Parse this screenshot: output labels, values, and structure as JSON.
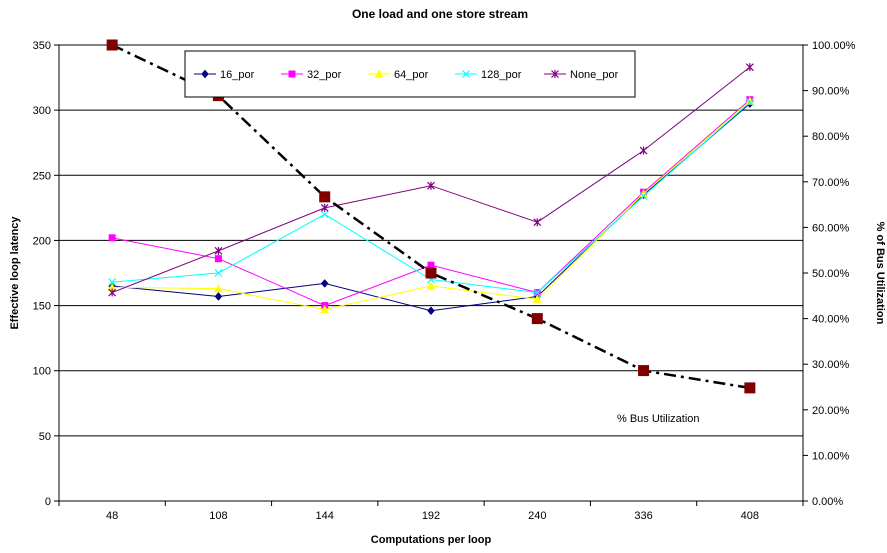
{
  "chart_data": {
    "type": "line",
    "title": "One load and one store stream",
    "xlabel": "Computations per loop",
    "ylabel": "Effective loop latency",
    "y2label": "% of Bus Utilization",
    "categories": [
      "48",
      "108",
      "144",
      "192",
      "240",
      "336",
      "408"
    ],
    "ylim": [
      0,
      350
    ],
    "y_ticks": [
      "0",
      "50",
      "100",
      "150",
      "200",
      "250",
      "300",
      "350"
    ],
    "y2lim": [
      0,
      100
    ],
    "y2_ticks": [
      "0.00%",
      "10.00%",
      "20.00%",
      "30.00%",
      "40.00%",
      "50.00%",
      "60.00%",
      "70.00%",
      "80.00%",
      "90.00%",
      "100.00%"
    ],
    "grid": "horizontal",
    "legend_position": "top-center",
    "series": [
      {
        "name": "16_por",
        "color": "#000080",
        "marker": "diamond",
        "values": [
          165,
          157,
          167,
          146,
          157,
          235,
          305
        ]
      },
      {
        "name": "32_por",
        "color": "#ff00ff",
        "marker": "square",
        "values": [
          202,
          186,
          150,
          181,
          160,
          237,
          308
        ]
      },
      {
        "name": "64_por",
        "color": "#ffff00",
        "marker": "triangle",
        "values": [
          164,
          163,
          147,
          165,
          155,
          236,
          307
        ]
      },
      {
        "name": "128_por",
        "color": "#00ffff",
        "marker": "x",
        "values": [
          168,
          175,
          220,
          170,
          160,
          234,
          306
        ]
      },
      {
        "name": "None_por",
        "color": "#800080",
        "marker": "star",
        "values": [
          160,
          192,
          225,
          242,
          214,
          269,
          333
        ]
      }
    ],
    "secondary_series": {
      "label": "% Bus Utilization",
      "color": "#000000",
      "marker_color": "#800000",
      "marker": "square",
      "line_style": "dash-dot",
      "values": [
        100.0,
        88.9,
        66.7,
        50.0,
        40.0,
        28.6,
        24.8
      ]
    }
  }
}
